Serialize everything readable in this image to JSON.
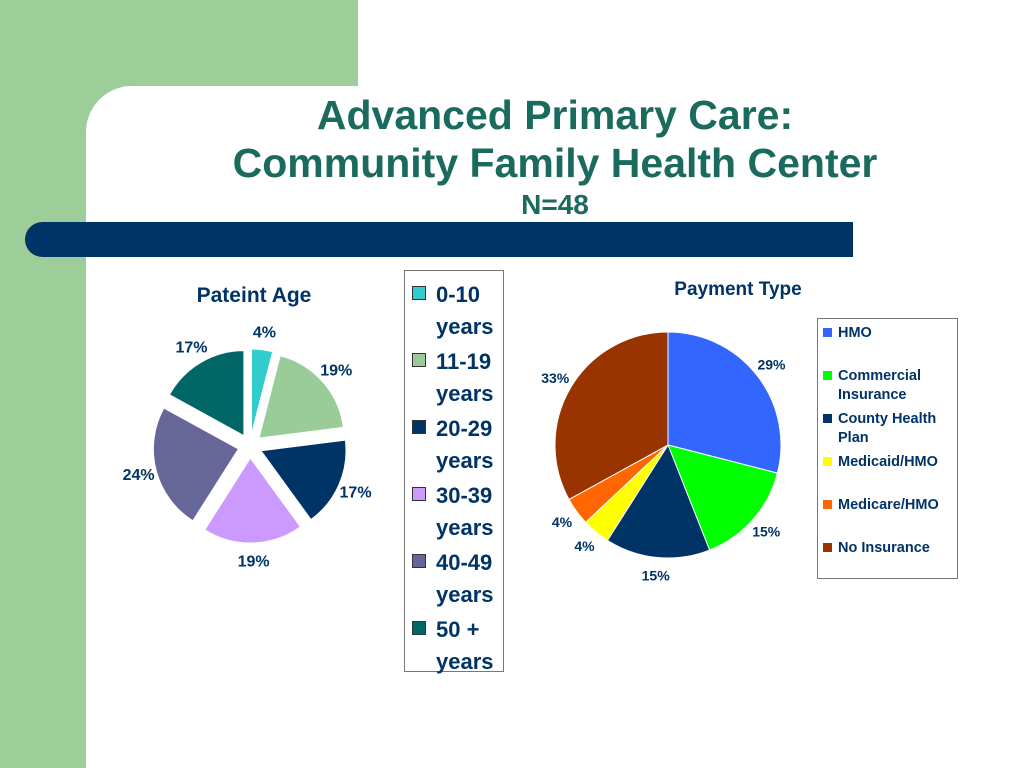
{
  "slide": {
    "title_line1": "Advanced Primary Care:",
    "title_line2": "Community Family Health Center",
    "title_line3": "N=48"
  },
  "chart_data": [
    {
      "type": "pie",
      "title": "Pateint Age",
      "categories": [
        "0-10 years",
        "11-19 years",
        "20-29 years",
        "30-39 years",
        "40-49 years",
        "50 + years"
      ],
      "values": [
        4,
        19,
        17,
        19,
        24,
        17
      ],
      "labels": [
        "4%",
        "19%",
        "17%",
        "19%",
        "24%",
        "17%"
      ],
      "colors": [
        "#33cccc",
        "#99cc99",
        "#003366",
        "#cc99ff",
        "#666699",
        "#006666"
      ],
      "exploded": true,
      "legend": "right"
    },
    {
      "type": "pie",
      "title": "Payment Type",
      "categories": [
        "HMO",
        "Commercial Insurance",
        "County Health Plan",
        "Medicaid/HMO",
        "Medicare/HMO",
        "No Insurance"
      ],
      "values": [
        29,
        15,
        15,
        4,
        4,
        33
      ],
      "labels": [
        "29%",
        "15%",
        "15%",
        "4%",
        "4%",
        "33%"
      ],
      "colors": [
        "#3366ff",
        "#00ff00",
        "#003366",
        "#ffff00",
        "#ff6600",
        "#993300"
      ],
      "exploded": false,
      "legend": "right"
    }
  ]
}
